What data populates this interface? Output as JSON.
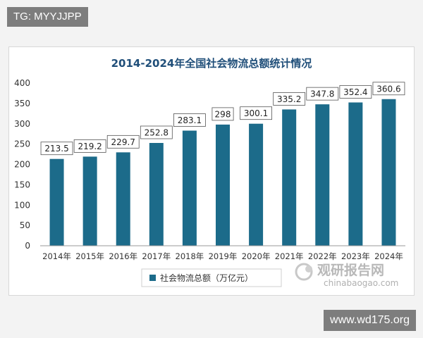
{
  "watermark_top": "TG: MYYJJPP",
  "watermark_bottom": "www.wd175.org",
  "logo": {
    "name": "观研报告网",
    "url": "chinabaogao.com"
  },
  "colors": {
    "bar": "#1c6b8a",
    "title": "#1f4e79",
    "axis": "#333333",
    "grid": "#d9d9d9"
  },
  "chart_data": {
    "type": "bar",
    "title": "2014-2024年全国社会物流总额统计情况",
    "categories": [
      "2014年",
      "2015年",
      "2016年",
      "2017年",
      "2018年",
      "2019年",
      "2020年",
      "2021年",
      "2022年",
      "2023年",
      "2024年"
    ],
    "series": [
      {
        "name": "社会物流总额（万亿元）",
        "values": [
          213.5,
          219.2,
          229.7,
          252.8,
          283.1,
          298,
          300.1,
          335.2,
          347.8,
          352.4,
          360.6
        ]
      }
    ],
    "ylim": [
      0,
      400
    ],
    "yticks": [
      0,
      50,
      100,
      150,
      200,
      250,
      300,
      350,
      400
    ],
    "grid": false,
    "legend": "bottom"
  }
}
